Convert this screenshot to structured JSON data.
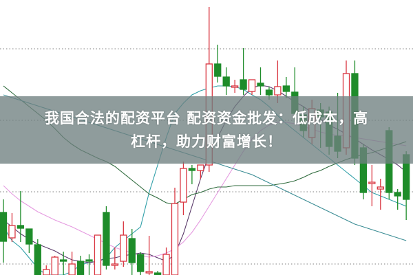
{
  "headline": {
    "line1": "我国合法的配资平台 配资资金批发：低成本，高",
    "line2": "杠杆，助力财富增长！"
  },
  "colors": {
    "up": "#d9343f",
    "down": "#1e8c2a",
    "banner": "#708080",
    "grid": "#999999",
    "ma": [
      "#2f9fa8",
      "#5a3a6a",
      "#e59ae0",
      "#2e6a3c",
      "#3a8c94"
    ]
  },
  "chart_data": {
    "type": "candlestick",
    "title": "",
    "grid": "horizontal dotted",
    "ylim": [
      0,
      400
    ],
    "candles": [
      {
        "o": 91,
        "c": 49,
        "h": 110,
        "l": 18
      },
      {
        "o": 54,
        "c": 72,
        "h": 90,
        "l": 48
      },
      {
        "o": 72,
        "c": 68,
        "h": 122,
        "l": 48
      },
      {
        "o": 67,
        "c": 45,
        "h": 67,
        "l": 32
      },
      {
        "o": 44,
        "c": 0,
        "h": 52,
        "l": 0
      },
      {
        "o": 0,
        "c": 8,
        "h": 14,
        "l": 0
      },
      {
        "o": 0,
        "c": 26,
        "h": 28,
        "l": 0
      },
      {
        "o": 22,
        "c": 20,
        "h": 34,
        "l": 0
      },
      {
        "o": 0,
        "c": 16,
        "h": 34,
        "l": 0
      },
      {
        "o": 20,
        "c": 0,
        "h": 28,
        "l": 0
      },
      {
        "o": 22,
        "c": 20,
        "h": 30,
        "l": 0
      },
      {
        "o": 0,
        "c": 58,
        "h": 58,
        "l": 0
      },
      {
        "o": 91,
        "c": 14,
        "h": 100,
        "l": 8
      },
      {
        "o": 14,
        "c": 16,
        "h": 40,
        "l": 8
      },
      {
        "o": 20,
        "c": 58,
        "h": 78,
        "l": 12
      },
      {
        "o": 53,
        "c": 18,
        "h": 67,
        "l": 0
      },
      {
        "o": 30,
        "c": 5,
        "h": 33,
        "l": 0
      },
      {
        "o": 3,
        "c": 5,
        "h": 57,
        "l": 0
      },
      {
        "o": 3,
        "c": 0,
        "h": 6,
        "l": 0
      },
      {
        "o": 0,
        "c": 30,
        "h": 40,
        "l": 0
      },
      {
        "o": 0,
        "c": 104,
        "h": 127,
        "l": 0
      },
      {
        "o": 106,
        "c": 155,
        "h": 165,
        "l": 87
      },
      {
        "o": 155,
        "c": 152,
        "h": 160,
        "l": 132
      },
      {
        "o": 152,
        "c": 160,
        "h": 160,
        "l": 140
      },
      {
        "o": 160,
        "c": 307,
        "h": 390,
        "l": 150
      },
      {
        "o": 307,
        "c": 289,
        "h": 335,
        "l": 280
      },
      {
        "o": 288,
        "c": 275,
        "h": 302,
        "l": 262
      },
      {
        "o": 273,
        "c": 275,
        "h": 284,
        "l": 265
      },
      {
        "o": 284,
        "c": 270,
        "h": 330,
        "l": 262
      },
      {
        "o": 267,
        "c": 284,
        "h": 284,
        "l": 262
      },
      {
        "o": 279,
        "c": 275,
        "h": 302,
        "l": 262
      },
      {
        "o": 269,
        "c": 262,
        "h": 274,
        "l": 255
      },
      {
        "o": 262,
        "c": 274,
        "h": 312,
        "l": 250
      },
      {
        "o": 275,
        "c": 267,
        "h": 288,
        "l": 257
      },
      {
        "o": 266,
        "c": 235,
        "h": 302,
        "l": 222
      },
      {
        "o": 233,
        "c": 210,
        "h": 245,
        "l": 200
      },
      {
        "o": 200,
        "c": 242,
        "h": 255,
        "l": 190
      },
      {
        "o": 240,
        "c": 230,
        "h": 250,
        "l": 185
      },
      {
        "o": 237,
        "c": 187,
        "h": 245,
        "l": 175
      },
      {
        "o": 202,
        "c": 180,
        "h": 265,
        "l": 170
      },
      {
        "o": 185,
        "c": 293,
        "h": 312,
        "l": 175
      },
      {
        "o": 293,
        "c": 170,
        "h": 312,
        "l": 160
      },
      {
        "o": 185,
        "c": 120,
        "h": 190,
        "l": 110
      },
      {
        "o": 133,
        "c": 135,
        "h": 160,
        "l": 100
      },
      {
        "o": 125,
        "c": 128,
        "h": 140,
        "l": 95
      },
      {
        "o": 210,
        "c": 120,
        "h": 215,
        "l": 110
      },
      {
        "o": 120,
        "c": 115,
        "h": 125,
        "l": 95
      },
      {
        "o": 175,
        "c": 110,
        "h": 180,
        "l": 80
      }
    ],
    "moving_averages": [
      [
        70,
        50,
        40,
        25,
        10,
        0,
        0,
        0,
        5,
        15,
        18,
        20,
        25,
        40,
        50,
        60,
        70,
        120,
        160,
        200,
        235,
        250,
        262,
        268,
        272,
        275,
        275,
        274,
        270,
        262,
        255,
        245,
        232,
        220,
        210,
        200,
        190,
        180,
        170,
        160,
        150,
        140,
        130,
        120,
        115,
        110,
        105,
        100
      ],
      [
        80,
        70,
        60,
        52,
        45,
        40,
        35,
        28,
        22,
        20,
        18,
        20,
        24,
        25,
        28,
        30,
        32,
        30,
        25,
        20,
        30,
        60,
        100,
        140,
        175,
        200,
        225,
        245,
        260,
        272,
        276,
        274,
        268,
        260,
        252,
        245,
        236,
        226,
        218,
        212,
        205,
        198,
        190,
        182,
        175,
        168,
        160,
        150
      ],
      [
        130,
        118,
        108,
        100,
        92,
        86,
        80,
        75,
        70,
        64,
        58,
        52,
        46,
        40,
        36,
        32,
        28,
        26,
        28,
        32,
        38,
        48,
        62,
        80,
        100,
        120,
        140,
        160,
        180,
        198,
        210,
        218,
        222,
        222,
        220,
        216,
        212,
        208,
        205,
        203,
        202,
        200,
        198,
        196,
        194,
        192,
        190,
        188
      ],
      [
        275,
        265,
        255,
        245,
        235,
        225,
        213,
        200,
        190,
        182,
        176,
        170,
        165,
        158,
        148,
        138,
        128,
        118,
        112,
        105,
        103,
        110,
        117,
        120,
        125,
        128,
        128,
        130,
        130,
        130,
        130,
        130,
        132,
        134,
        137,
        142,
        148,
        152,
        158,
        163,
        168,
        172,
        175,
        178,
        182,
        186,
        190,
        194
      ],
      [
        262,
        258,
        254,
        250,
        246,
        242,
        238,
        234,
        230,
        226,
        222,
        218,
        214,
        210,
        206,
        202,
        198,
        194,
        190,
        186,
        182,
        178,
        174,
        170,
        166,
        162,
        158,
        154,
        150,
        146,
        140,
        134,
        128,
        122,
        116,
        110,
        104,
        98,
        92,
        86,
        80,
        74,
        70,
        66,
        62,
        58,
        54,
        50
      ]
    ]
  }
}
